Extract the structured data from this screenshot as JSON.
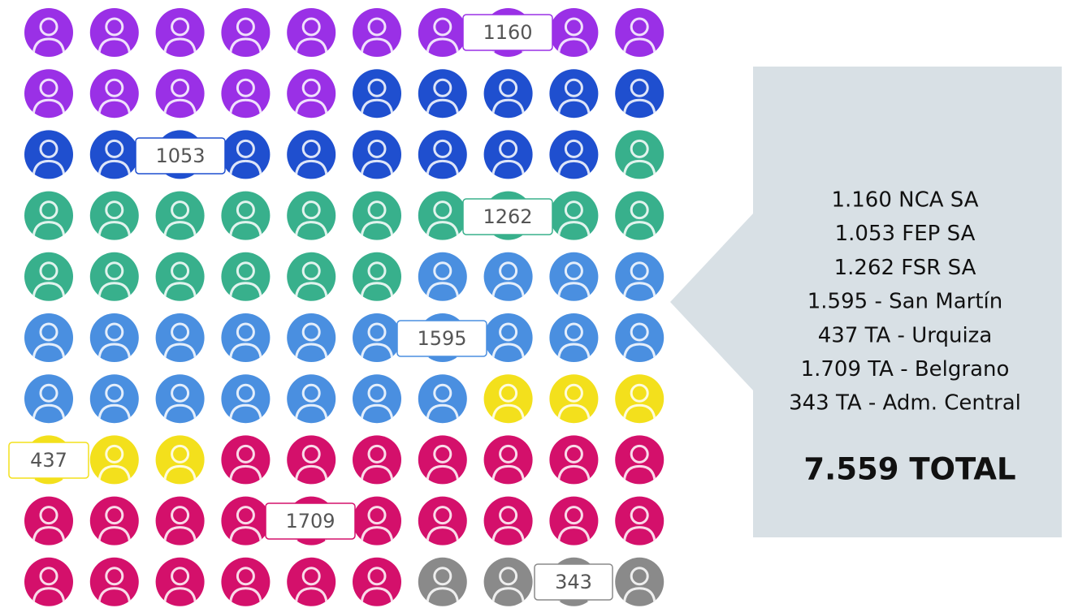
{
  "chart_data": {
    "type": "waffle",
    "values": [
      1160,
      1053,
      1262,
      1595,
      437,
      1709,
      343
    ],
    "colors": [
      "#9a30e6",
      "#1f4fcf",
      "#38b08c",
      "#4a8fe0",
      "#f3e01c",
      "#d4106b",
      "#8a8a8a"
    ],
    "legend": [
      "1.160 NCA SA",
      "1.053 FEP SA",
      "1.262 FSR SA",
      "1.595 - San Martín",
      "437 TA - Urquiza",
      "1.709 TA - Belgrano",
      "343 TA - Adm. Central"
    ],
    "total": "7.559 TOTAL"
  }
}
